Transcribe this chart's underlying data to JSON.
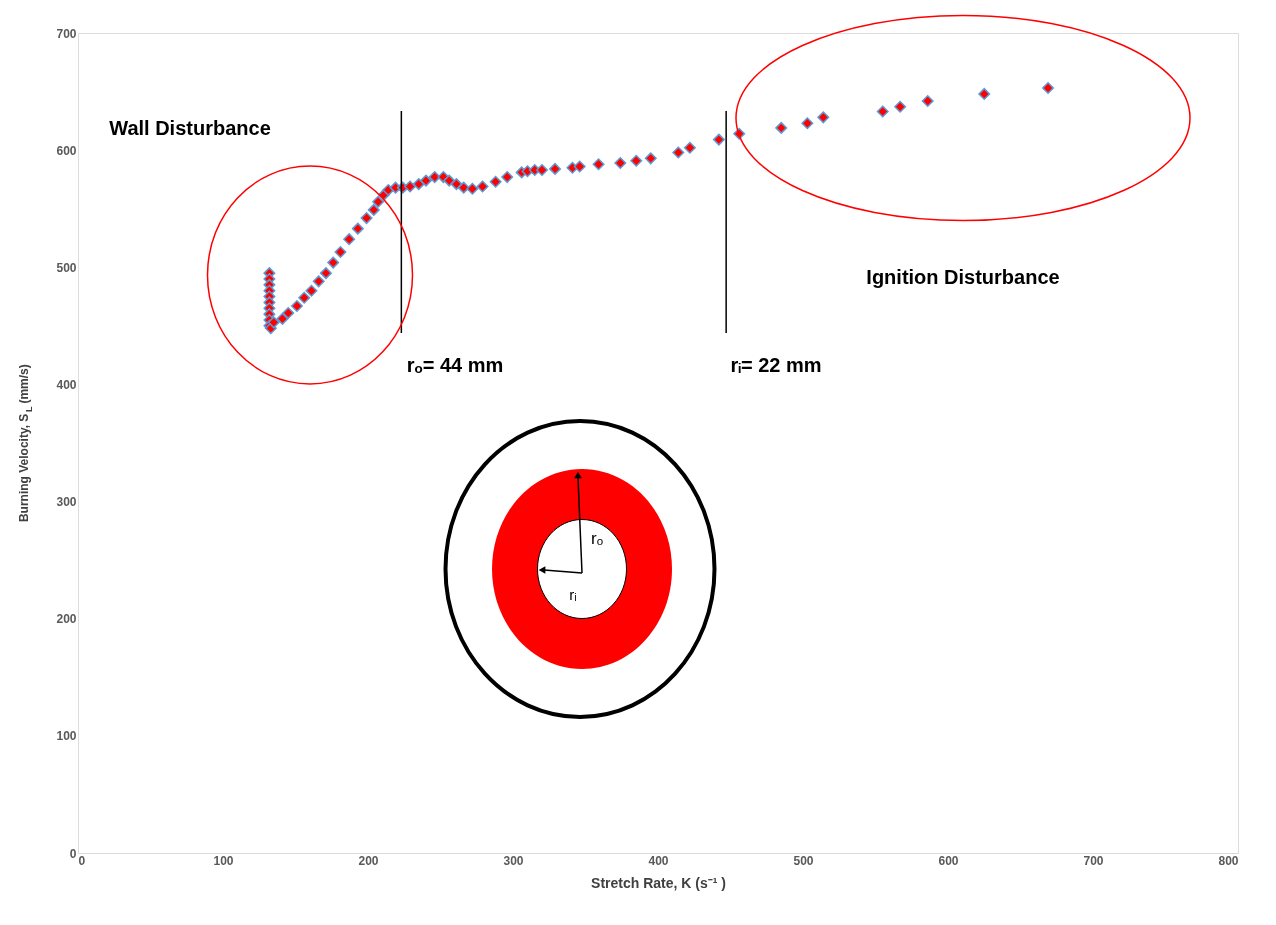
{
  "chart_data": {
    "type": "scatter",
    "xlabel": "Stretch Rate, K (s⁻¹ )",
    "ylabel": "Burning Velocity, S$_{L}$ (mm/s)",
    "x": [
      132,
      132,
      132,
      132,
      132,
      132,
      132,
      132,
      132,
      132,
      133,
      135,
      141,
      145,
      151,
      156,
      161,
      166,
      171,
      176,
      181,
      187,
      193,
      199,
      204,
      207,
      211,
      214,
      219,
      224,
      229,
      235,
      240,
      246,
      252,
      256,
      261,
      266,
      272,
      279,
      288,
      296,
      306,
      310,
      315,
      320,
      329,
      341,
      346,
      359,
      374,
      385,
      395,
      414,
      422,
      442,
      456,
      485,
      503,
      514,
      555,
      567,
      586,
      625,
      669
    ],
    "series": [
      {
        "color": "#ff0000",
        "values": [
          495,
          490,
          485,
          480,
          475,
          470,
          465,
          460,
          455,
          450,
          448,
          453,
          456,
          461,
          467,
          474,
          480,
          488,
          495,
          504,
          513,
          524,
          533,
          542,
          549,
          556,
          562,
          566,
          568,
          568,
          569,
          571,
          574,
          577,
          577,
          574,
          571,
          568,
          567,
          569,
          573,
          577,
          581,
          582,
          583,
          583,
          584,
          585,
          586,
          588,
          589,
          591,
          593,
          598,
          602,
          609,
          614,
          619,
          623,
          628,
          633,
          637,
          642,
          648,
          653
        ]
      }
    ],
    "marker": "diamond",
    "xlim": [
      0,
      800
    ],
    "ylim": [
      0,
      700
    ],
    "xticks": [
      0,
      100,
      200,
      300,
      400,
      500,
      600,
      700,
      800
    ],
    "yticks": [
      0,
      100,
      200,
      300,
      400,
      500,
      600,
      700
    ],
    "grid": false,
    "ref_lines": [
      {
        "axis": "x",
        "value": 223,
        "color": "#000000"
      },
      {
        "axis": "x",
        "value": 447,
        "color": "#000000"
      }
    ],
    "annotations": [
      "Wall Disturbance",
      "rₒ= 44 mm",
      "rᵢ= 22 mm",
      "Ignition Disturbance",
      "rₒ",
      "rᵢ"
    ]
  }
}
